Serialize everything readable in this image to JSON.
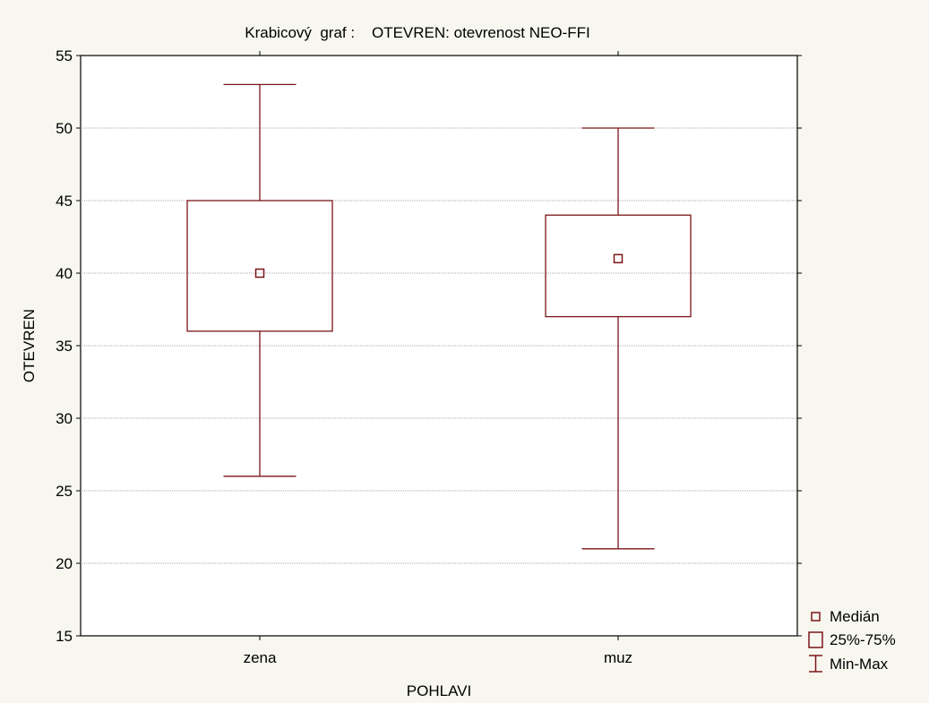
{
  "chart_data": {
    "type": "box",
    "title": "Krabicový  graf :    OTEVREN: otevrenost NEO-FFI",
    "xlabel": "POHLAVI",
    "ylabel": "OTEVREN",
    "categories": [
      "zena",
      "muz"
    ],
    "ylim": [
      15,
      55
    ],
    "yticks": [
      15,
      20,
      25,
      30,
      35,
      40,
      45,
      50,
      55
    ],
    "grid": true,
    "legend_position": "bottom-right",
    "boxes": [
      {
        "category": "zena",
        "min": 26,
        "q1": 36,
        "median": 40,
        "q3": 45,
        "max": 53
      },
      {
        "category": "muz",
        "min": 21,
        "q1": 37,
        "median": 41,
        "q3": 44,
        "max": 50
      }
    ],
    "legend": [
      {
        "symbol": "square",
        "label": "Medián"
      },
      {
        "symbol": "box",
        "label": "25%-75%"
      },
      {
        "symbol": "whisker",
        "label": "Min-Max"
      }
    ],
    "colors": {
      "box": "#7B1518",
      "grid": "#A8A8A8",
      "background": "#F7F7EF",
      "plot_background": "#FFFFFF"
    }
  }
}
